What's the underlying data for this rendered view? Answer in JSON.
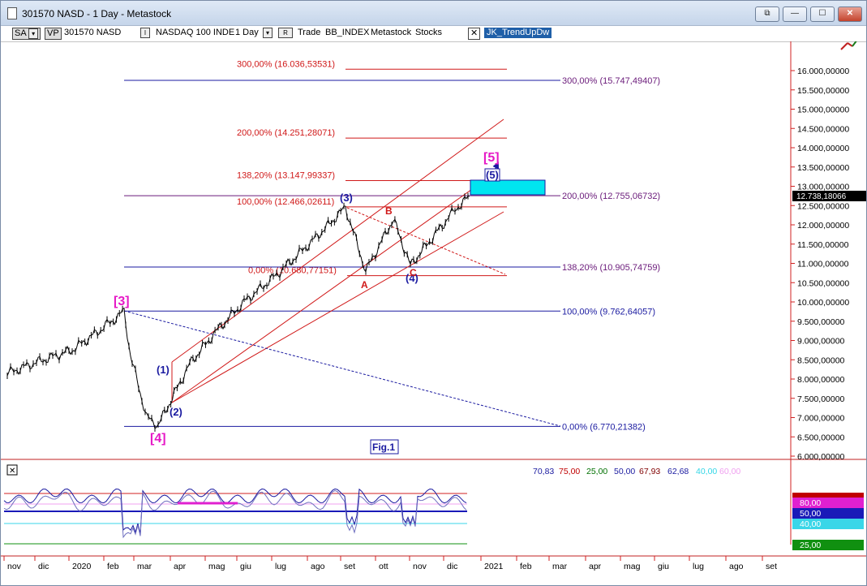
{
  "window": {
    "title": "301570 NASD - 1 Day - Metastock",
    "buttons": {
      "restore2": "⧉",
      "minimize": "—",
      "maximize": "☐",
      "close": "✕"
    }
  },
  "toolbar": {
    "sa": "SA",
    "vp": "VP",
    "symbol": "301570 NASD",
    "ticker_btn": "I",
    "ticker": "NASDAQ 100 INDE",
    "period": "1 Day",
    "period_btn": "R",
    "trade": "Trade",
    "bbindex": "BB_INDEX",
    "metastock": "Metastock",
    "stocks": "Stocks",
    "close_x": "✕",
    "template": "JK_TrendUpDw"
  },
  "chart_data": {
    "type": "line",
    "title": "",
    "xlabel": "",
    "ylabel": "",
    "x_ticks": [
      "nov",
      "dic",
      "2020",
      "feb",
      "mar",
      "apr",
      "mag",
      "giu",
      "lug",
      "ago",
      "set",
      "ott",
      "nov",
      "dic",
      "2021",
      "feb",
      "mar",
      "apr",
      "mag",
      "giu",
      "lug",
      "ago",
      "set"
    ],
    "y_ticks": [
      "16.000,00000",
      "15.500,00000",
      "15.000,00000",
      "14.500,00000",
      "14.000,00000",
      "13.500,00000",
      "13.000,00000",
      "12.500,00000",
      "12.000,00000",
      "11.500,00000",
      "11.000,00000",
      "10.500,00000",
      "10.000,00000",
      "9.500,00000",
      "9.000,00000",
      "8.500,00000",
      "8.000,00000",
      "7.500,00000",
      "7.000,00000",
      "6.500,00000",
      "6.000,00000"
    ],
    "ylim": [
      5950,
      16400
    ],
    "last_price": "12.738,18066",
    "price_series": [
      [
        "nov",
        8150
      ],
      [
        "dic",
        8450
      ],
      [
        "2020",
        8750
      ],
      [
        "feb",
        9400
      ],
      [
        "feb-late",
        9750
      ],
      [
        "mar-early",
        8600
      ],
      [
        "mar-mid",
        7000
      ],
      [
        "mar-low",
        6800
      ],
      [
        "apr",
        8400
      ],
      [
        "mag",
        9300
      ],
      [
        "giu",
        10000
      ],
      [
        "lug",
        10700
      ],
      [
        "ago",
        11700
      ],
      [
        "set-top",
        12450
      ],
      [
        "set-low",
        10800
      ],
      [
        "ott-high",
        12150
      ],
      [
        "nov-low",
        10950
      ],
      [
        "dic",
        12400
      ],
      [
        "dic-late",
        12740
      ]
    ],
    "fib_levels_red": [
      {
        "label": "300,00% (16.036,53531)",
        "value": 16036.5
      },
      {
        "label": "200,00% (14.251,28071)",
        "value": 14251.3
      },
      {
        "label": "138,20% (13.147,99337)",
        "value": 13148.0
      },
      {
        "label": "100,00% (12.466,02611)",
        "value": 12466.0
      },
      {
        "label": "0,00% (10.680,77151)",
        "value": 10680.8
      }
    ],
    "fib_levels_blue": [
      {
        "label": "300,00% (15.747,49407)",
        "value": 15747.5
      },
      {
        "label": "200,00% (12.755,06732)",
        "value": 12755.1
      },
      {
        "label": "138,20% (10.905,74759)",
        "value": 10905.7
      },
      {
        "label": "100,00% (9.762,64057)",
        "value": 9762.6
      },
      {
        "label": "0,00% (6.770,21382)",
        "value": 6770.2
      }
    ],
    "wave_labels": [
      {
        "text": "[3]",
        "color": "#e619c6"
      },
      {
        "text": "[4]",
        "color": "#e619c6"
      },
      {
        "text": "[5]",
        "color": "#e619c6"
      },
      {
        "text": "(1)",
        "color": "#1a1aa0"
      },
      {
        "text": "(2)",
        "color": "#1a1aa0"
      },
      {
        "text": "(3)",
        "color": "#1a1aa0"
      },
      {
        "text": "(4)",
        "color": "#1a1aa0"
      },
      {
        "text": "(5)",
        "color": "#1a1aa0"
      },
      {
        "text": "A",
        "color": "#d01818"
      },
      {
        "text": "B",
        "color": "#d01818"
      },
      {
        "text": "C",
        "color": "#d01818"
      }
    ],
    "figure_label": "Fig.1"
  },
  "indicator": {
    "close_x": "✕",
    "values": [
      {
        "text": "70,83",
        "color": "#1a1aa0"
      },
      {
        "text": "75,00",
        "color": "#c00000"
      },
      {
        "text": "25,00",
        "color": "#007000"
      },
      {
        "text": "50,00",
        "color": "#1a1aa0"
      },
      {
        "text": "67,93",
        "color": "#800000"
      },
      {
        "text": "62,68",
        "color": "#1a1aa0"
      },
      {
        "text": "40,00",
        "color": "#33d6e6"
      },
      {
        "text": "60,00",
        "color": "#f0a0f0"
      }
    ],
    "axis_badges": [
      {
        "text": "80,00",
        "bg": "#e020d0"
      },
      {
        "text": "50,00",
        "bg": "#1a1ab8"
      },
      {
        "text": "40,00",
        "bg": "#3ad6e8"
      },
      {
        "text": "25,00",
        "bg": "#109010"
      }
    ]
  },
  "colors": {
    "red_line": "#d01818",
    "blue_line": "#1a1aa0",
    "purple_text": "#6a1a7a",
    "target_box": "#00e5f0",
    "axis_red": "#d02020"
  }
}
